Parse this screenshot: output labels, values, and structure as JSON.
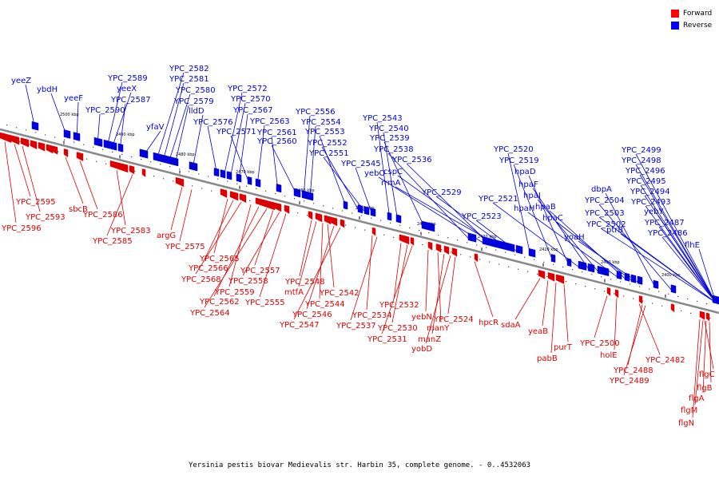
{
  "caption": "Yersinia pestis biovar Medievalis str. Harbin 35, complete genome. - 0..4532063",
  "legend": [
    {
      "label": "Forward",
      "color": "#ff0000"
    },
    {
      "label": "Reverse",
      "color": "#0000ff"
    }
  ],
  "colors": {
    "forward": "#dd0000",
    "reverse": "#0000dd",
    "backbone": "#888888"
  },
  "ticks": [
    "2500 kbp",
    "2490 kbp",
    "2480 kbp",
    "2470 kbp",
    "2460 kbp",
    "2450 kbp",
    "2440 kbp",
    "2430 kbp",
    "2420 kbp",
    "2410 kbp",
    "2400 kbp"
  ],
  "reverse_labels": [
    "yeeZ",
    "ybdH",
    "yeeF",
    "YPC_2590",
    "YPC_2589",
    "yeeX",
    "YPC_2587",
    "yfaV",
    "YPC_2582",
    "YPC_2581",
    "YPC_2580",
    "YPC_2579",
    "lldD",
    "YPC_2576",
    "YPC_2572",
    "YPC_2570",
    "YPC_2567",
    "YPC_2571",
    "YPC_2563",
    "YPC_2561",
    "YPC_2560",
    "YPC_2556",
    "YPC_2554",
    "YPC_2553",
    "YPC_2552",
    "YPC_2551",
    "YPC_2545",
    "YPC_2543",
    "YPC_2540",
    "YPC_2539",
    "YPC_2538",
    "yebO",
    "YPC_2536",
    "cspC",
    "rrmA",
    "YPC_2529",
    "YPC_2523",
    "YPC_2520",
    "YPC_2519",
    "hpaD",
    "YPC_2521",
    "hpaF",
    "hpaI",
    "hpaH",
    "hpaB",
    "hpaC",
    "yoaH",
    "dbpA",
    "YPC_2504",
    "YPC_2503",
    "YPC_2502",
    "ptrB",
    "YPC_2499",
    "YPC_2498",
    "YPC_2496",
    "YPC_2495",
    "YPC_2494",
    "YPC_2493",
    "yebY",
    "YPC_2487",
    "YPC_2486",
    "flhE"
  ],
  "forward_labels": [
    "YPC_2595",
    "YPC_2593",
    "YPC_2596",
    "sbcB",
    "YPC_2586",
    "YPC_2583",
    "YPC_2585",
    "argG",
    "YPC_2575",
    "YPC_2565",
    "YPC_2566",
    "YPC_2568",
    "YPC_2559",
    "YPC_2562",
    "YPC_2564",
    "YPC_2557",
    "YPC_2558",
    "YPC_2555",
    "YPC_2548",
    "mtfA",
    "YPC_2544",
    "YPC_2542",
    "YPC_2546",
    "YPC_2547",
    "YPC_2534",
    "YPC_2537",
    "YPC_2532",
    "YPC_2530",
    "YPC_2531",
    "yebN",
    "manY",
    "manZ",
    "yobD",
    "YPC_2524",
    "hpcR",
    "sdaA",
    "yeaB",
    "pabB",
    "purT",
    "YPC_2500",
    "holE",
    "YPC_2482",
    "YPC_2488",
    "YPC_2489",
    "flgC",
    "flgB",
    "flgA",
    "flgM",
    "flgN"
  ]
}
